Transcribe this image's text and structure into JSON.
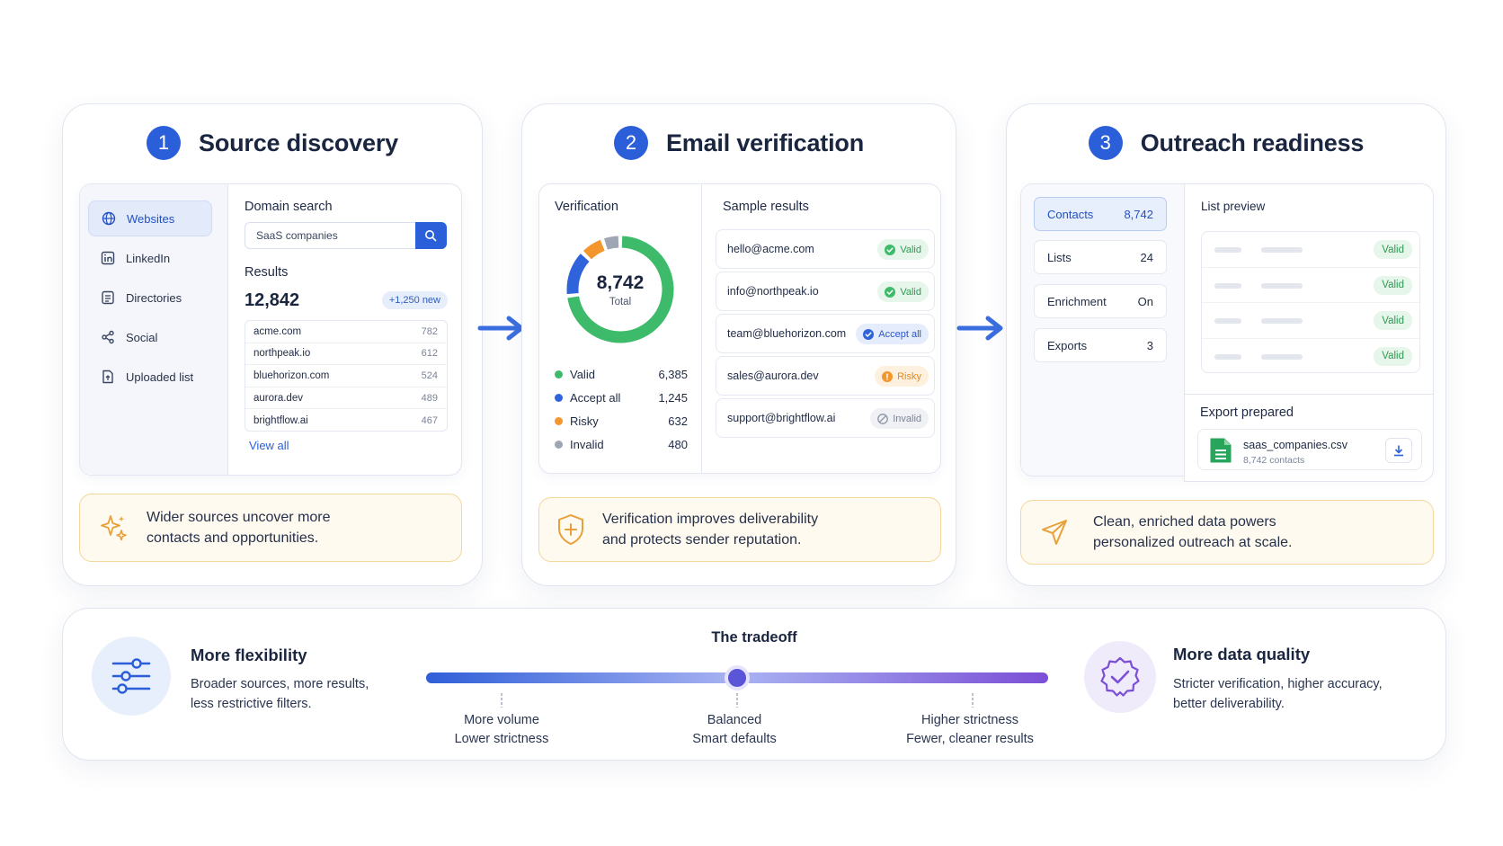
{
  "steps": [
    {
      "num": "1",
      "title": "Source discovery",
      "nav": [
        "Websites",
        "LinkedIn",
        "Directories",
        "Social",
        "Uploaded list"
      ],
      "search_label": "Domain search",
      "search_value": "SaaS companies",
      "results_label": "Results",
      "results_count": "12,842",
      "new_badge": "+1,250 new",
      "domains": [
        {
          "name": "acme.com",
          "count": "782"
        },
        {
          "name": "northpeak.io",
          "count": "612"
        },
        {
          "name": "bluehorizon.com",
          "count": "524"
        },
        {
          "name": "aurora.dev",
          "count": "489"
        },
        {
          "name": "brightflow.ai",
          "count": "467"
        }
      ],
      "view_all": "View all",
      "note": [
        "Wider sources uncover more",
        "contacts and opportunities."
      ]
    },
    {
      "num": "2",
      "title": "Email verification",
      "verification_label": "Verification",
      "donut_total": "8,742",
      "donut_sub": "Total",
      "legend": [
        {
          "label": "Valid",
          "value": "6,385",
          "color": "#3dbb6a"
        },
        {
          "label": "Accept all",
          "value": "1,245",
          "color": "#2f63dc"
        },
        {
          "label": "Risky",
          "value": "632",
          "color": "#f2962d"
        },
        {
          "label": "Invalid",
          "value": "480",
          "color": "#9ea5b3"
        }
      ],
      "sample_label": "Sample results",
      "samples": [
        {
          "email": "hello@acme.com",
          "status": "Valid",
          "kind": "valid"
        },
        {
          "email": "info@northpeak.io",
          "status": "Valid",
          "kind": "valid"
        },
        {
          "email": "team@bluehorizon.com",
          "status": "Accept all",
          "kind": "accept"
        },
        {
          "email": "sales@aurora.dev",
          "status": "Risky",
          "kind": "risky"
        },
        {
          "email": "support@brightflow.ai",
          "status": "Invalid",
          "kind": "invalid"
        }
      ],
      "note": [
        "Verification improves deliverability",
        "and protects sender reputation."
      ]
    },
    {
      "num": "3",
      "title": "Outreach readiness",
      "stats": [
        {
          "label": "Contacts",
          "value": "8,742"
        },
        {
          "label": "Lists",
          "value": "24"
        },
        {
          "label": "Enrichment",
          "value": "On"
        },
        {
          "label": "Exports",
          "value": "3"
        }
      ],
      "preview_label": "List preview",
      "preview_status": [
        "Valid",
        "Valid",
        "Valid",
        "Valid"
      ],
      "export_label": "Export prepared",
      "file_name": "saas_companies.csv",
      "file_sub": "8,742 contacts",
      "note": [
        "Clean, enriched data powers",
        "personalized outreach at scale."
      ]
    }
  ],
  "tradeoff": {
    "title": "The tradeoff",
    "left_title": "More flexibility",
    "left_desc": [
      "Broader sources, more results,",
      "less restrictive filters."
    ],
    "right_title": "More data quality",
    "right_desc": [
      "Stricter verification, higher accuracy,",
      "better deliverability."
    ],
    "slider_position": 0.5,
    "scale": [
      {
        "top": "More volume",
        "bottom": "Lower strictness"
      },
      {
        "top": "Balanced",
        "bottom": "Smart defaults"
      },
      {
        "top": "Higher strictness",
        "bottom": "Fewer, cleaner results"
      }
    ]
  },
  "colors": {
    "accent": "#2b5fd9",
    "purple": "#7b4fd6",
    "note_bg": "#fffaef",
    "note_border": "#f3d79c"
  }
}
